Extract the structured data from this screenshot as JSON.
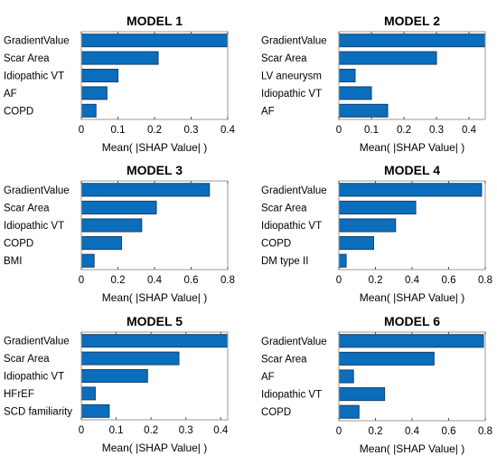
{
  "colors": {
    "bar": "#0a6ebd"
  },
  "chart_data": [
    {
      "type": "bar",
      "orientation": "horizontal",
      "title": "MODEL 1",
      "categories": [
        "GradientValue",
        "Scar Area",
        "Idiopathic VT",
        "AF",
        "COPD"
      ],
      "values": [
        0.4,
        0.21,
        0.1,
        0.07,
        0.04
      ],
      "xlim": [
        0,
        0.4
      ],
      "xticks": [
        0,
        0.1,
        0.2,
        0.3,
        0.4
      ],
      "xticklabels": [
        "0",
        "0.1",
        "0.2",
        "0.3",
        "0.4"
      ],
      "xlabel": "Mean( |SHAP Value| )",
      "grid": false
    },
    {
      "type": "bar",
      "orientation": "horizontal",
      "title": "MODEL 2",
      "categories": [
        "GradientValue",
        "Scar Area",
        "LV aneurysm",
        "Idiopathic VT",
        "AF"
      ],
      "values": [
        0.45,
        0.3,
        0.05,
        0.1,
        0.15
      ],
      "xlim": [
        0,
        0.45
      ],
      "xticks": [
        0,
        0.1,
        0.2,
        0.3,
        0.4
      ],
      "xticklabels": [
        "0",
        "0.1",
        "0.2",
        "0.3",
        "0.4"
      ],
      "xlabel": "Mean( |SHAP Value| )",
      "grid": false
    },
    {
      "type": "bar",
      "orientation": "horizontal",
      "title": "MODEL 3",
      "categories": [
        "GradientValue",
        "Scar Area",
        "Idiopathic VT",
        "COPD",
        "BMI"
      ],
      "values": [
        0.7,
        0.41,
        0.33,
        0.22,
        0.07
      ],
      "xlim": [
        0,
        0.8
      ],
      "xticks": [
        0,
        0.2,
        0.4,
        0.6,
        0.8
      ],
      "xticklabels": [
        "0",
        "0.2",
        "0.4",
        "0.6",
        "0.8"
      ],
      "xlabel": "Mean( |SHAP Value| )",
      "grid": false
    },
    {
      "type": "bar",
      "orientation": "horizontal",
      "title": "MODEL 4",
      "categories": [
        "GradientValue",
        "Scar Area",
        "Idiopathic VT",
        "COPD",
        "DM type II"
      ],
      "values": [
        0.78,
        0.42,
        0.31,
        0.19,
        0.04
      ],
      "xlim": [
        0,
        0.8
      ],
      "xticks": [
        0,
        0.2,
        0.4,
        0.6,
        0.8
      ],
      "xticklabels": [
        "0",
        "0.2",
        "0.4",
        "0.6",
        "0.8"
      ],
      "xlabel": "Mean( |SHAP Value| )",
      "grid": false
    },
    {
      "type": "bar",
      "orientation": "horizontal",
      "title": "MODEL 5",
      "categories": [
        "GradientValue",
        "Scar Area",
        "Idiopathic VT",
        "HFrEF",
        "SCD familiarity"
      ],
      "values": [
        0.42,
        0.28,
        0.19,
        0.04,
        0.08
      ],
      "xlim": [
        0,
        0.42
      ],
      "xticks": [
        0,
        0.1,
        0.2,
        0.3,
        0.4
      ],
      "xticklabels": [
        "0",
        "0.1",
        "0.2",
        "0.3",
        "0.4"
      ],
      "xlabel": "Mean( |SHAP Value| )",
      "grid": false
    },
    {
      "type": "bar",
      "orientation": "horizontal",
      "title": "MODEL 6",
      "categories": [
        "GradientValue",
        "Scar Area",
        "AF",
        "Idiopathic VT",
        "COPD"
      ],
      "values": [
        0.79,
        0.52,
        0.08,
        0.25,
        0.11
      ],
      "xlim": [
        0,
        0.8
      ],
      "xticks": [
        0,
        0.2,
        0.4,
        0.6,
        0.8
      ],
      "xticklabels": [
        "0",
        "0.2",
        "0.4",
        "0.6",
        "0.8"
      ],
      "xlabel": "Mean( |SHAP Value| )",
      "grid": false
    }
  ]
}
